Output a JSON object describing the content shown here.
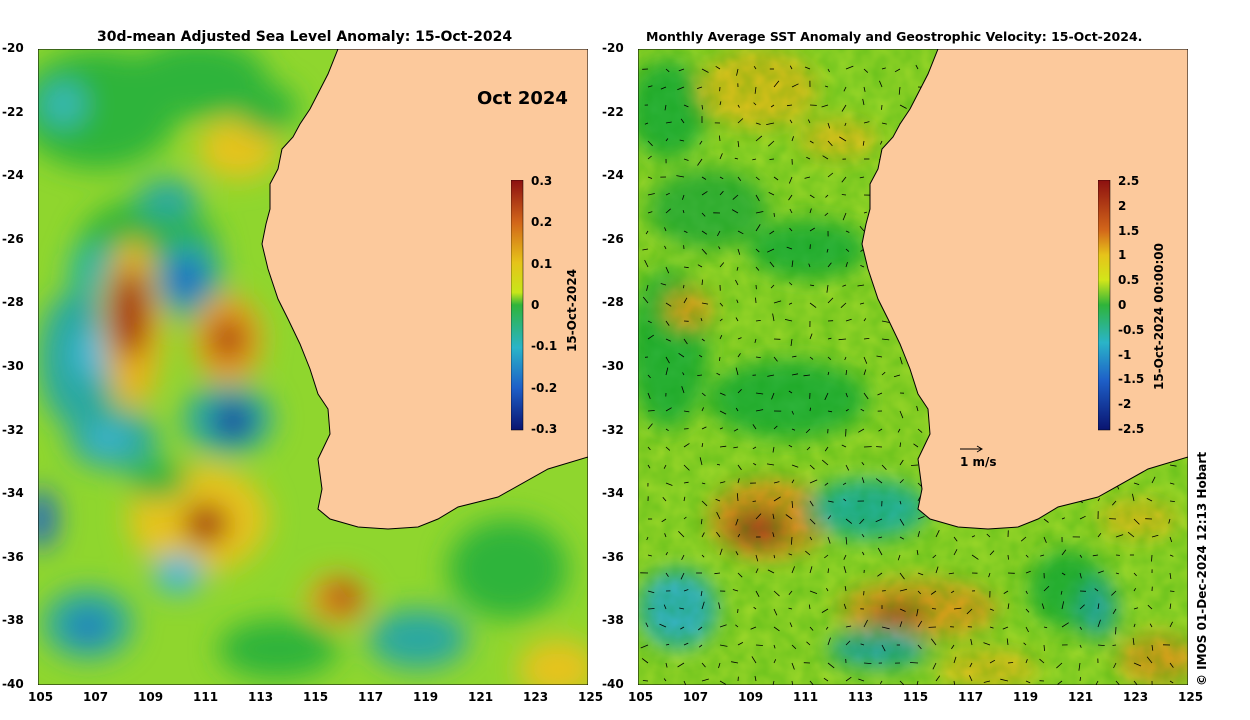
{
  "left_panel": {
    "title": "30d-mean Adjusted Sea Level Anomaly: 15-Oct-2024",
    "month_label": "Oct 2024",
    "colorbar": {
      "ticks": [
        "0.3",
        "0.2",
        "0.1",
        "0",
        "-0.1",
        "-0.2",
        "-0.3"
      ],
      "label": "15-Oct-2024"
    }
  },
  "right_panel": {
    "title": "Monthly Average SST Anomaly  and Geostrophic Velocity: 15-Oct-2024.",
    "colorbar": {
      "ticks": [
        "2.5",
        "2",
        "1.5",
        "1",
        "0.5",
        "0",
        "-0.5",
        "-1",
        "-1.5",
        "-2",
        "-2.5"
      ],
      "label": "15-Oct-2024 00:00:00"
    },
    "velocity_scale_label": "1 m/s"
  },
  "axes": {
    "lon_ticks": [
      "105",
      "107",
      "109",
      "111",
      "113",
      "115",
      "117",
      "119",
      "121",
      "123",
      "125"
    ],
    "lat_ticks": [
      "-20",
      "-22",
      "-24",
      "-26",
      "-28",
      "-30",
      "-32",
      "-34",
      "-36",
      "-38",
      "-40"
    ]
  },
  "credit": "© IMOS 01-Dec-2024 12:13 Hobart",
  "colors": {
    "land": "#fcc99c",
    "coast": "#000000",
    "anomaly_high": "#a0180a",
    "anomaly_mid": "#d2e61a",
    "anomaly_zero": "#2fb43a",
    "anomaly_low": "#0a1896"
  }
}
